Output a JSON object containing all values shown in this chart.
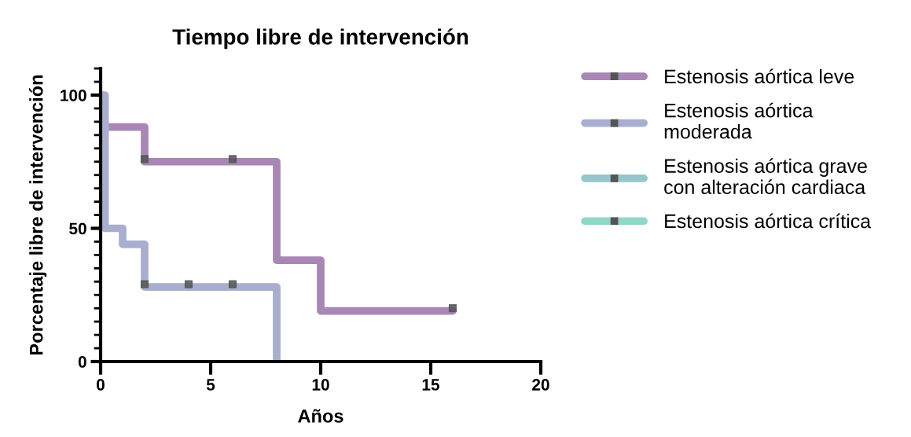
{
  "chart_data": {
    "type": "step",
    "title": "Tiempo libre de intervención",
    "xlabel": "Años",
    "ylabel": "Porcentaje libre de intervención",
    "xlim": [
      0,
      20
    ],
    "xticks": [
      0,
      5,
      10,
      15,
      20
    ],
    "ylim": [
      0,
      110
    ],
    "yticks": [
      0,
      50,
      100
    ],
    "grid": false,
    "legend": "right",
    "series": [
      {
        "name": "Estenosis aórtica leve",
        "color": "#a887b5",
        "x": [
          0,
          0.1,
          2,
          8,
          10,
          16
        ],
        "values": [
          100,
          88,
          75,
          38,
          19,
          19
        ]
      },
      {
        "name": "Estenosis aórtica\nmoderada",
        "color": "#a9aecf",
        "x": [
          0,
          0.2,
          1,
          2,
          8,
          8
        ],
        "values": [
          100,
          50,
          44,
          28,
          0,
          0
        ]
      },
      {
        "name": "Estenosis aórtica grave\ncon alteración cardiaca",
        "color": "#96c6cc"
      },
      {
        "name": "Estenosis aórtica crítica",
        "color": "#8fd8c8"
      },
      {
        "type": "scatter",
        "marker": "square",
        "color": "#555555",
        "x": [
          2,
          6,
          16
        ],
        "values": [
          76,
          76,
          20
        ]
      },
      {
        "type": "scatter",
        "marker": "square",
        "color": "#555555",
        "x": [
          2,
          4,
          6
        ],
        "values": [
          29,
          29,
          29
        ]
      }
    ]
  }
}
